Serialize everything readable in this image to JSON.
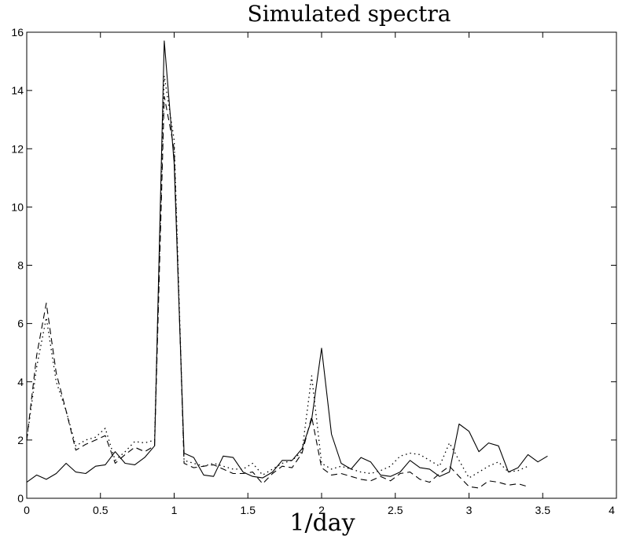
{
  "chart_data": {
    "type": "line",
    "title": "Simulated spectra",
    "xlabel": "1/day",
    "ylabel": "",
    "xlim": [
      0,
      4
    ],
    "ylim": [
      0,
      16
    ],
    "xticks": [
      0,
      0.5,
      1,
      1.5,
      2,
      2.5,
      3,
      3.5,
      4
    ],
    "xtick_labels": [
      "0",
      "0.5",
      "1",
      "1.5",
      "2",
      "2.5",
      "3",
      "3.5",
      "4"
    ],
    "yticks": [
      0,
      2,
      4,
      6,
      8,
      10,
      12,
      14,
      16
    ],
    "ytick_labels": [
      "0",
      "2",
      "4",
      "6",
      "8",
      "10",
      "12",
      "14",
      "16"
    ],
    "grid": false,
    "x": [
      0,
      0.067,
      0.133,
      0.2,
      0.267,
      0.333,
      0.4,
      0.467,
      0.533,
      0.6,
      0.667,
      0.733,
      0.8,
      0.867,
      0.933,
      1.0,
      1.067,
      1.133,
      1.2,
      1.267,
      1.333,
      1.4,
      1.467,
      1.533,
      1.6,
      1.667,
      1.733,
      1.8,
      1.867,
      1.933,
      2.0,
      2.067,
      2.133,
      2.2,
      2.267,
      2.333,
      2.4,
      2.467,
      2.533,
      2.6,
      2.667,
      2.733,
      2.8,
      2.867,
      2.933,
      3.0,
      3.067,
      3.133,
      3.2,
      3.267,
      3.333,
      3.4,
      3.467,
      3.533,
      3.6,
      3.667,
      3.733
    ],
    "series": [
      {
        "style": "solid",
        "color": "#000000",
        "values": [
          0.55,
          0.8,
          0.65,
          0.85,
          1.2,
          0.9,
          0.85,
          1.1,
          1.15,
          1.6,
          1.2,
          1.15,
          1.4,
          1.8,
          15.7,
          11.5,
          1.55,
          1.4,
          0.8,
          0.75,
          1.45,
          1.4,
          0.9,
          0.75,
          0.7,
          0.9,
          1.3,
          1.3,
          1.7,
          2.7,
          5.15,
          2.2,
          1.2,
          1.0,
          1.4,
          1.25,
          0.8,
          0.75,
          0.9,
          1.3,
          1.05,
          1.0,
          0.75,
          0.9,
          2.55,
          2.3,
          1.6,
          1.9,
          1.8,
          0.9,
          1.05,
          1.5,
          1.25,
          1.45,
          null,
          null,
          null
        ]
      },
      {
        "style": "dashed",
        "color": "#000000",
        "values": [
          2.0,
          4.9,
          6.7,
          4.3,
          3.0,
          1.65,
          1.85,
          2.0,
          2.15,
          1.2,
          1.5,
          1.75,
          1.6,
          1.8,
          13.8,
          12.0,
          1.2,
          1.05,
          1.1,
          1.15,
          1.0,
          0.85,
          0.85,
          0.9,
          0.5,
          0.85,
          1.1,
          1.05,
          1.55,
          2.8,
          1.05,
          0.8,
          0.85,
          0.75,
          0.65,
          0.6,
          0.75,
          0.6,
          0.85,
          0.9,
          0.65,
          0.55,
          0.85,
          1.1,
          0.75,
          0.4,
          0.35,
          0.6,
          0.55,
          0.45,
          0.5,
          0.4,
          null,
          null,
          null,
          null,
          null
        ]
      },
      {
        "style": "dotted",
        "color": "#000000",
        "values": [
          2.0,
          4.5,
          6.2,
          4.0,
          3.0,
          1.8,
          2.0,
          2.1,
          2.4,
          1.3,
          1.6,
          1.95,
          1.9,
          2.0,
          14.5,
          12.3,
          1.3,
          1.2,
          1.1,
          1.2,
          1.1,
          1.0,
          1.0,
          1.2,
          0.8,
          1.0,
          1.2,
          1.3,
          1.6,
          4.2,
          1.2,
          1.0,
          1.1,
          1.0,
          0.9,
          0.85,
          0.95,
          1.1,
          1.45,
          1.55,
          1.5,
          1.3,
          1.1,
          1.9,
          1.3,
          0.7,
          0.9,
          1.1,
          1.25,
          0.9,
          0.95,
          1.1,
          null,
          null,
          null,
          null,
          null
        ]
      }
    ]
  }
}
